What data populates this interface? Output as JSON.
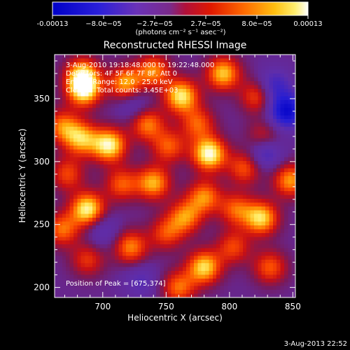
{
  "colorbar": {
    "tick_labels": [
      "-0.00013",
      "−8.0e−05",
      "−2.7e−05",
      "2.7e−05",
      "8.0e−05",
      "0.00013"
    ],
    "range": [
      -0.00013,
      0.00013
    ],
    "unit_label": "(photons cm⁻² s⁻¹ asec⁻²)"
  },
  "chart_data": {
    "type": "heatmap",
    "title": "Reconstructed RHESSI Image",
    "xlabel": "Heliocentric X (arcsec)",
    "ylabel": "Heliocentric Y (arcsec)",
    "xlim": [
      662,
      852
    ],
    "ylim": [
      192,
      385
    ],
    "x_ticks": [
      700,
      750,
      800,
      850
    ],
    "y_ticks": [
      200,
      250,
      300,
      350
    ],
    "info_lines": [
      "3-Aug-2010 19:18:48.000 to 19:22:48.000",
      "Detectors: 4F 5F 6F 7F 8F, Att 0",
      "Energy Range: 12.0 - 25.0 keV",
      "Clean     Total counts: 3.45E+03"
    ],
    "peak_label": "Position of Peak = [675,374]",
    "peak": [
      675,
      374
    ],
    "colormap": "RHESSI blue-purple-red-yellow-white",
    "blobs": [
      {
        "x": 685,
        "y": 357,
        "peak": 0.95
      },
      {
        "x": 684,
        "y": 370,
        "peak": 0.7
      },
      {
        "x": 718,
        "y": 362,
        "peak": 0.75
      },
      {
        "x": 740,
        "y": 372,
        "peak": 0.65
      },
      {
        "x": 762,
        "y": 352,
        "peak": 0.9
      },
      {
        "x": 795,
        "y": 370,
        "peak": 0.8
      },
      {
        "x": 822,
        "y": 352,
        "peak": 0.55
      },
      {
        "x": 668,
        "y": 328,
        "peak": 0.6
      },
      {
        "x": 683,
        "y": 318,
        "peak": 0.75
      },
      {
        "x": 705,
        "y": 313,
        "peak": 0.95
      },
      {
        "x": 735,
        "y": 330,
        "peak": 0.65
      },
      {
        "x": 752,
        "y": 312,
        "peak": 0.55
      },
      {
        "x": 784,
        "y": 306,
        "peak": 1.0
      },
      {
        "x": 775,
        "y": 330,
        "peak": 0.55
      },
      {
        "x": 812,
        "y": 295,
        "peak": 0.55
      },
      {
        "x": 827,
        "y": 318,
        "peak": 0.5
      },
      {
        "x": 672,
        "y": 290,
        "peak": 0.5
      },
      {
        "x": 688,
        "y": 262,
        "peak": 0.95
      },
      {
        "x": 715,
        "y": 282,
        "peak": 0.55
      },
      {
        "x": 740,
        "y": 283,
        "peak": 0.75
      },
      {
        "x": 765,
        "y": 256,
        "peak": 0.65
      },
      {
        "x": 780,
        "y": 272,
        "peak": 0.65
      },
      {
        "x": 805,
        "y": 262,
        "peak": 0.55
      },
      {
        "x": 825,
        "y": 255,
        "peak": 0.85
      },
      {
        "x": 848,
        "y": 285,
        "peak": 0.7
      },
      {
        "x": 668,
        "y": 246,
        "peak": 0.6
      },
      {
        "x": 750,
        "y": 243,
        "peak": 0.5
      },
      {
        "x": 688,
        "y": 222,
        "peak": 0.45
      },
      {
        "x": 722,
        "y": 232,
        "peak": 0.65
      },
      {
        "x": 780,
        "y": 216,
        "peak": 0.85
      },
      {
        "x": 803,
        "y": 232,
        "peak": 0.5
      },
      {
        "x": 832,
        "y": 216,
        "peak": 0.55
      },
      {
        "x": 760,
        "y": 200,
        "peak": 0.6
      },
      {
        "x": 845,
        "y": 340,
        "peak": -0.9
      },
      {
        "x": 828,
        "y": 308,
        "peak": -0.6
      },
      {
        "x": 835,
        "y": 360,
        "peak": -0.5
      },
      {
        "x": 725,
        "y": 345,
        "peak": -0.3
      },
      {
        "x": 700,
        "y": 245,
        "peak": -0.3
      },
      {
        "x": 730,
        "y": 205,
        "peak": -0.3
      }
    ]
  },
  "footer": {
    "timestamp": "3-Aug-2013 22:52"
  }
}
